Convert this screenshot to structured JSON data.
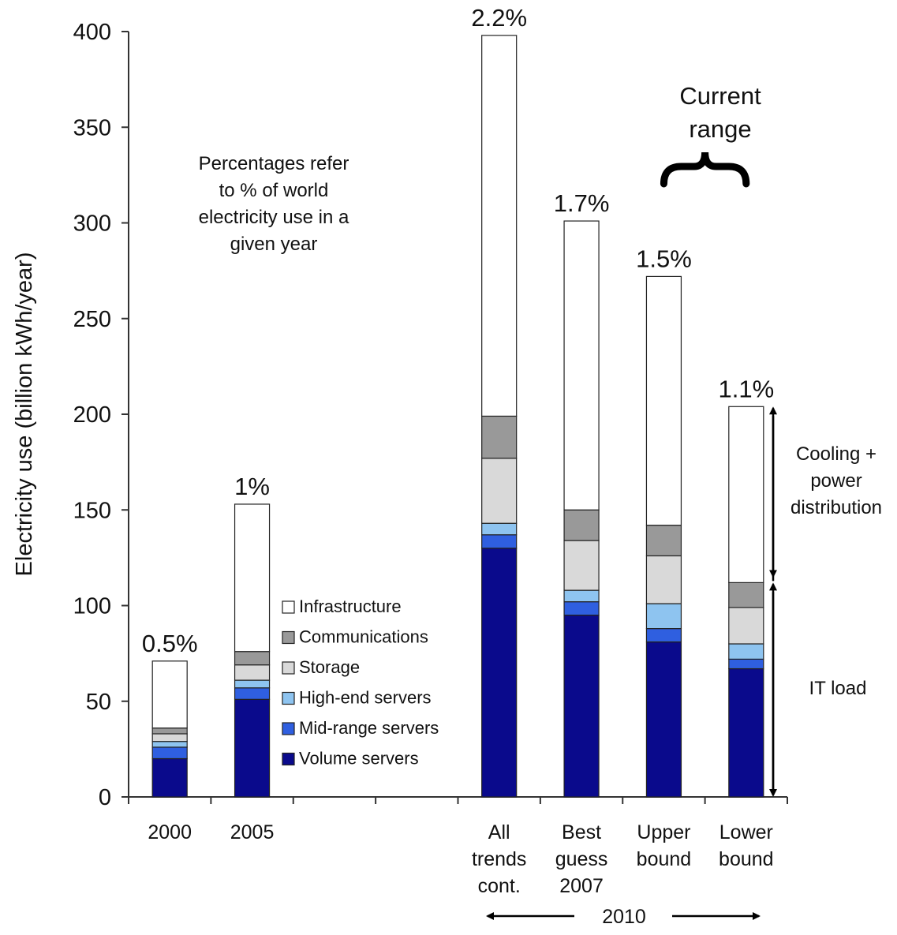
{
  "chart_data": {
    "type": "bar",
    "stacked": true,
    "ylabel": "Electricity use (billion kWh/year)",
    "ylim": [
      0,
      400
    ],
    "yticks": [
      0,
      50,
      100,
      150,
      200,
      250,
      300,
      350,
      400
    ],
    "categories": [
      {
        "lines": [
          "2000"
        ],
        "slot": 0
      },
      {
        "lines": [
          "2005"
        ],
        "slot": 1
      },
      {
        "lines": [
          "All",
          "trends",
          "cont."
        ],
        "slot": 4
      },
      {
        "lines": [
          "Best",
          "guess",
          "2007"
        ],
        "slot": 5
      },
      {
        "lines": [
          "Upper",
          "bound"
        ],
        "slot": 6
      },
      {
        "lines": [
          "Lower",
          "bound"
        ],
        "slot": 7
      }
    ],
    "slot_count": 8,
    "percent_labels": [
      "0.5%",
      "1%",
      "2.2%",
      "1.7%",
      "1.5%",
      "1.1%"
    ],
    "series": [
      {
        "name": "Volume servers",
        "color": "#0a0a8c",
        "values": [
          20,
          51,
          130,
          95,
          81,
          67
        ]
      },
      {
        "name": "Mid-range servers",
        "color": "#2f5fe0",
        "values": [
          6,
          6,
          7,
          7,
          7,
          5
        ]
      },
      {
        "name": "High-end servers",
        "color": "#8ec4f0",
        "values": [
          3,
          4,
          6,
          6,
          13,
          8
        ]
      },
      {
        "name": "Storage",
        "color": "#d9d9d9",
        "values": [
          4,
          8,
          34,
          26,
          25,
          19
        ]
      },
      {
        "name": "Communications",
        "color": "#999999",
        "values": [
          3,
          7,
          22,
          16,
          16,
          13
        ]
      },
      {
        "name": "Infrastructure",
        "color": "#ffffff",
        "values": [
          35,
          77,
          199,
          151,
          130,
          92
        ]
      }
    ],
    "legend": {
      "placement": "inside-center",
      "order": [
        "Infrastructure",
        "Communications",
        "Storage",
        "High-end servers",
        "Mid-range servers",
        "Volume servers"
      ]
    },
    "annotations": {
      "note": [
        "Percentages refer",
        "to % of world",
        "electricity use in a",
        "given year"
      ],
      "current_range": [
        "Current",
        "range"
      ],
      "cooling": [
        "Cooling +",
        "power",
        "distribution"
      ],
      "it_load": "IT load",
      "year_2010": "2010"
    }
  }
}
